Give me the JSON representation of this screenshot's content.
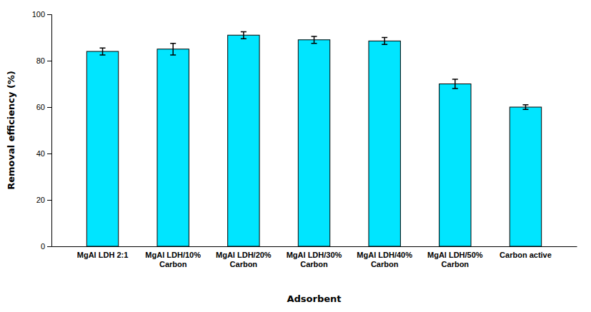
{
  "chart_data": {
    "type": "bar",
    "categories": [
      "MgAl LDH 2:1",
      "MgAl LDH/10%\nCarbon",
      "MgAl LDH/20%\nCarbon",
      "MgAl LDH/30%\nCarbon",
      "MgAl LDH/40%\nCarbon",
      "MgAl LDH/50%\nCarbon",
      "Carbon active"
    ],
    "values": [
      84,
      85,
      91,
      89,
      88.5,
      70,
      60
    ],
    "errors": [
      1.5,
      2.5,
      1.5,
      1.5,
      1.5,
      2.0,
      1.0
    ],
    "color": "#00E5FF",
    "xlabel": "Adsorbent",
    "ylabel": "Removal efficiency (%)",
    "ylim": [
      0,
      100
    ],
    "yticks": [
      0,
      20,
      40,
      60,
      80,
      100
    ],
    "grid": false
  }
}
